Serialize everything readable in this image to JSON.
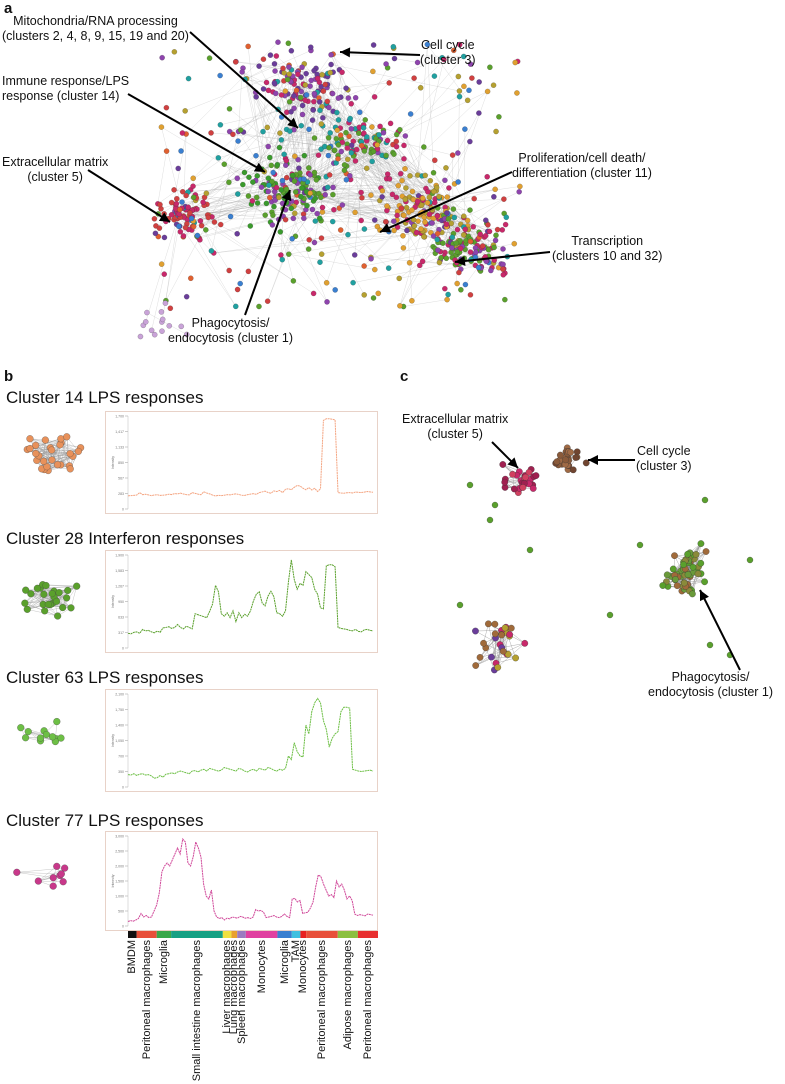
{
  "panels": {
    "a": {
      "letter": "a",
      "annotations": {
        "mitochondria": [
          "Mitochondria/RNA processing",
          "(clusters 2, 4, 8, 9, 15, 19 and 20)"
        ],
        "cell_cycle": [
          "Cell cycle",
          "(cluster 3)"
        ],
        "immune": [
          "Immune response/LPS",
          "response (cluster 14)"
        ],
        "extracellular": [
          "Extracellular matrix",
          "(cluster 5)"
        ],
        "proliferation": [
          "Proliferation/cell death/",
          "differentiation (cluster 11)"
        ],
        "transcription": [
          "Transcription",
          "(clusters 10 and 32)"
        ],
        "phagocytosis": [
          "Phagocytosis/",
          "endocytosis (cluster 1)"
        ]
      }
    },
    "b": {
      "letter": "b"
    },
    "c": {
      "letter": "c",
      "annotations": {
        "extracellular": [
          "Extracellular matrix",
          "(cluster 5)"
        ],
        "cell_cycle": [
          "Cell cycle",
          "(cluster 3)"
        ],
        "phagocytosis": [
          "Phagocytosis/",
          "endocytosis (cluster 1)"
        ]
      }
    }
  },
  "colors": {
    "cluster14": "#f4a582",
    "cluster28": "#5aa02c",
    "cluster63": "#6dbf45",
    "cluster77": "#d0499a",
    "edge": "#b8b8b8"
  },
  "chart_data": [
    {
      "type": "line",
      "title": "Cluster 14 LPS responses",
      "ylabel": "Intensity",
      "values": [
        240,
        245,
        250,
        255,
        300,
        262,
        270,
        258,
        244,
        256,
        262,
        248,
        252,
        258,
        270,
        264,
        282,
        276,
        290,
        274,
        262,
        258,
        300,
        286,
        272,
        262,
        314,
        292,
        276,
        255,
        238,
        250,
        245,
        252,
        262,
        258,
        270,
        276,
        265,
        252,
        248,
        262,
        272,
        280,
        268,
        300,
        312,
        326,
        302,
        288,
        330,
        318,
        340,
        300,
        360,
        370,
        352,
        396,
        430,
        420,
        380,
        352,
        392,
        348,
        378,
        320,
        370,
        1620,
        1650,
        1650,
        1640,
        1630,
        300,
        292,
        288,
        296,
        300,
        292,
        310,
        305,
        302,
        308,
        320,
        312,
        306
      ],
      "ylim": [
        0,
        1700
      ]
    },
    {
      "type": "line",
      "title": "Cluster 28 Interferon responses",
      "ylabel": "Intensity",
      "values": [
        300,
        290,
        320,
        330,
        300,
        380,
        350,
        360,
        330,
        310,
        345,
        320,
        410,
        420,
        435,
        400,
        420,
        480,
        420,
        390,
        445,
        420,
        390,
        700,
        680,
        660,
        640,
        620,
        750,
        900,
        1280,
        1150,
        700,
        650,
        720,
        620,
        760,
        540,
        720,
        620,
        690,
        650,
        760,
        960,
        1100,
        1150,
        920,
        860,
        1060,
        1160,
        1050,
        720,
        700,
        650,
        760,
        1350,
        1800,
        1400,
        1200,
        1320,
        1280,
        1560,
        1500,
        1440,
        1200,
        1100,
        820,
        800,
        1680,
        1700,
        1700,
        1660,
        420,
        400,
        390,
        380,
        360,
        350,
        380,
        340,
        330,
        370,
        380,
        360,
        350
      ],
      "ylim": [
        0,
        1900
      ]
    },
    {
      "type": "line",
      "title": "Cluster 63 LPS responses",
      "ylabel": "Intensity",
      "values": [
        280,
        270,
        300,
        260,
        290,
        300,
        270,
        280,
        250,
        200,
        210,
        260,
        220,
        290,
        300,
        320,
        300,
        340,
        360,
        340,
        320,
        300,
        360,
        370,
        340,
        380,
        400,
        360,
        420,
        400,
        380,
        360,
        380,
        440,
        420,
        400,
        380,
        360,
        420,
        400,
        360,
        340,
        380,
        400,
        360,
        420,
        400,
        380,
        440,
        420,
        380,
        360,
        400,
        380,
        420,
        700,
        620,
        1000,
        800,
        700,
        680,
        1400,
        1200,
        1700,
        1900,
        2000,
        1900,
        1500,
        1300,
        900,
        1100,
        1200,
        1250,
        1700,
        1800,
        1800,
        1780,
        400,
        380,
        360,
        350,
        360,
        370,
        380,
        360
      ],
      "ylim": [
        0,
        2100
      ]
    },
    {
      "type": "line",
      "title": "Cluster 77 LPS responses",
      "ylabel": "Intensity",
      "values": [
        150,
        180,
        160,
        200,
        250,
        420,
        300,
        350,
        280,
        300,
        500,
        700,
        1100,
        1800,
        2000,
        2100,
        2000,
        2200,
        2400,
        2600,
        2400,
        2900,
        2800,
        2100,
        2000,
        2300,
        2800,
        2600,
        2300,
        1400,
        1000,
        900,
        1200,
        500,
        300,
        250,
        280,
        200,
        260,
        240,
        300,
        280,
        260,
        320,
        300,
        260,
        280,
        250,
        300,
        550,
        500,
        520,
        460,
        280,
        300,
        320,
        350,
        300,
        280,
        320,
        400,
        320,
        280,
        900,
        920,
        800,
        850,
        420,
        440,
        460,
        600,
        800,
        1300,
        1700,
        1650,
        1400,
        1200,
        1000,
        1050,
        950,
        1500,
        1300,
        1400,
        1200,
        900,
        1000,
        850,
        400,
        350,
        380,
        360,
        340,
        400,
        380,
        360
      ],
      "ylim": [
        0,
        3000
      ]
    }
  ],
  "tissues": [
    {
      "label": "BMDM",
      "color": "#111111",
      "start": 0,
      "end": 3
    },
    {
      "label": "Peritoneal macrophages",
      "color": "#e8503a",
      "start": 3,
      "end": 10
    },
    {
      "label": "Microglia",
      "color": "#3aa84a",
      "start": 10,
      "end": 15
    },
    {
      "label": "Small intestine macrophages",
      "color": "#16a083",
      "start": 15,
      "end": 33
    },
    {
      "label": "Liver macrophages",
      "color": "#f0e040",
      "start": 33,
      "end": 36
    },
    {
      "label": "Lung macrophages",
      "color": "#e8a030",
      "start": 36,
      "end": 38
    },
    {
      "label": "Spleen macrophages",
      "color": "#9b7bc0",
      "start": 38,
      "end": 41
    },
    {
      "label": "Monocytes",
      "color": "#e040a0",
      "start": 41,
      "end": 52
    },
    {
      "label": "Microglia",
      "color": "#3a7fd0",
      "start": 52,
      "end": 57
    },
    {
      "label": "TAM",
      "color": "#40c0e0",
      "start": 57,
      "end": 60
    },
    {
      "label": "Monocytes",
      "color": "#e82020",
      "start": 60,
      "end": 62
    },
    {
      "label": "Peritoneal macrophages",
      "color": "#e8503a",
      "start": 62,
      "end": 73
    },
    {
      "label": "Adipose macrophages",
      "color": "#8cc040",
      "start": 73,
      "end": 80
    },
    {
      "label": "Peritoneal macrophages",
      "color": "#e83030",
      "start": 80,
      "end": 87
    }
  ]
}
